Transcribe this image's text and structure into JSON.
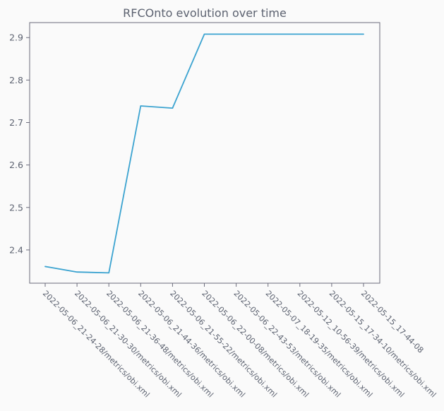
{
  "chart_data": {
    "type": "line",
    "title": "RFCOnto evolution over time",
    "xlabel": "",
    "ylabel": "",
    "categories": [
      "2022-05-06_21-24-28/metrics/obi.xml",
      "2022-05-06_21-30-30/metrics/obi.xml",
      "2022-05-06_21-36-48/metrics/obi.xml",
      "2022-05-06_21-44-36/metrics/obi.xml",
      "2022-05-06_21-55-22/metrics/obi.xml",
      "2022-05-06_22-00-08/metrics/obi.xml",
      "2022-05-06_22-43-53/metrics/obi.xml",
      "2022-05-07_18-19-35/metrics/obi.xml",
      "2022-05-12_10-56-39/metrics/obi.xml",
      "2022-05-15_17-34-10/metrics/obi.xml",
      "2022-05-15_17-44-08"
    ],
    "values": [
      2.361,
      2.348,
      2.346,
      2.739,
      2.734,
      2.908,
      2.908,
      2.908,
      2.908,
      2.908,
      2.908
    ],
    "ylim": [
      2.3217,
      2.9353
    ],
    "yticks": [
      "2.4",
      "2.5",
      "2.6",
      "2.7",
      "2.8",
      "2.9"
    ],
    "grid": false,
    "legend": "none",
    "colors": {
      "line": "#3ba3d0",
      "axis": "#6b6b7b",
      "text": "#5c6270",
      "background": "#fafafa"
    }
  }
}
